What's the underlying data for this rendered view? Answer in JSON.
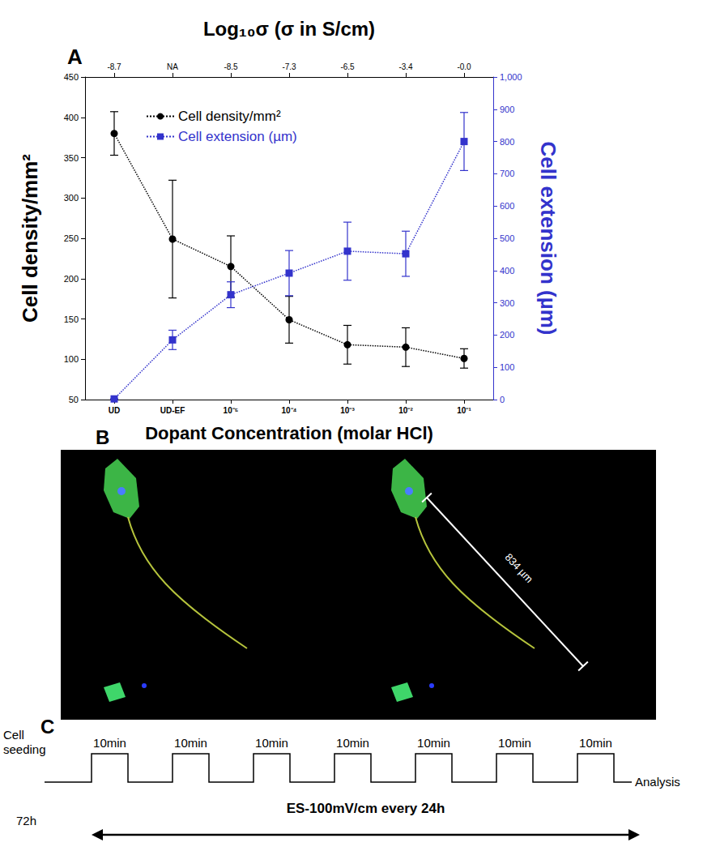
{
  "chart_data": {
    "type": "line",
    "panel_label": "A",
    "x2_label": "Log₁₀σ (σ in S/cm)",
    "x2_categories": [
      "-8.7",
      "NA",
      "-8.5",
      "-7.3",
      "-6.5",
      "-3.4",
      "-0.0"
    ],
    "x_label": "Dopant Concentration (molar HCl)",
    "y_label": "Cell density/mm²",
    "y2_label": "Cell extension (µm)",
    "categories": [
      "UD",
      "UD-EF",
      "10⁻⁵",
      "10⁻⁴",
      "10⁻³",
      "10⁻²",
      "10⁻¹"
    ],
    "ylim": [
      50,
      450
    ],
    "yticks": [
      50,
      100,
      150,
      200,
      250,
      300,
      350,
      400,
      450
    ],
    "y2lim": [
      0,
      1000
    ],
    "y2ticks": [
      0,
      100,
      200,
      300,
      400,
      500,
      600,
      700,
      800,
      900,
      1000
    ],
    "grid": false,
    "legend": "upper left",
    "series": [
      {
        "name": "Cell density/mm²",
        "color": "#000000",
        "marker": "circle",
        "line_style": "dotted",
        "values": [
          380,
          249,
          215,
          149,
          118,
          115,
          101
        ],
        "errors": [
          27,
          73,
          38,
          29,
          24,
          24,
          12
        ]
      },
      {
        "name": "Cell extension (µm)",
        "color": "#3333cc",
        "marker": "square",
        "line_style": "dotted",
        "axis": "y2",
        "values": [
          2,
          185,
          325,
          392,
          460,
          452,
          800
        ],
        "errors": [
          0,
          30,
          40,
          70,
          90,
          70,
          90
        ]
      }
    ]
  },
  "image_panel": {
    "label": "B",
    "scale_bar": "834 µm"
  },
  "timeline": {
    "label": "C",
    "start": "Cell seeding",
    "start_duration": "72h",
    "pulses": [
      "10min",
      "10min",
      "10min",
      "10min",
      "10min",
      "10min",
      "10min"
    ],
    "end": "Analysis",
    "stimulation": "ES-100mV/cm every 24h"
  }
}
